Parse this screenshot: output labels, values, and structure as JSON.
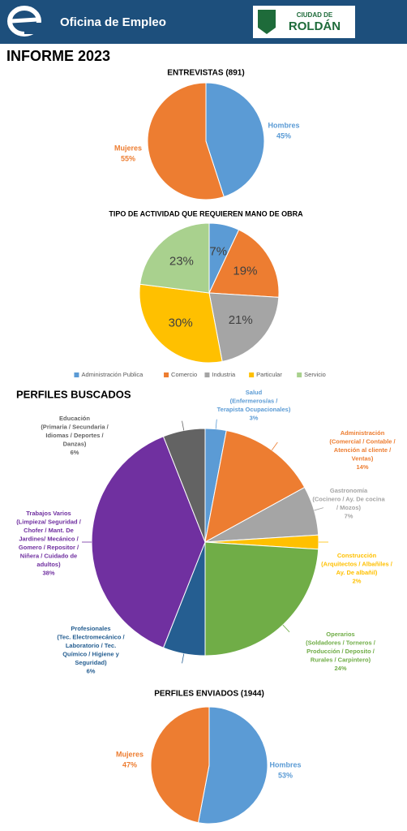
{
  "header": {
    "brand": "Oficina de Empleo",
    "logo_top": "CIUDAD DE",
    "logo_bottom": "ROLDÁN"
  },
  "report_title": "INFORME 2023",
  "chart_data": [
    {
      "type": "pie",
      "title": "ENTREVISTAS (891)",
      "categories": [
        "Hombres",
        "Mujeres"
      ],
      "values": [
        45,
        55
      ],
      "value_labels": [
        "45%",
        "55%"
      ],
      "colors": [
        "#5b9bd5",
        "#ed7d31"
      ]
    },
    {
      "type": "pie",
      "title": "TIPO DE ACTIVIDAD QUE REQUIEREN MANO DE OBRA",
      "categories": [
        "Administración Publica",
        "Comercio",
        "Industria",
        "Particular",
        "Servicio"
      ],
      "values": [
        7,
        19,
        21,
        30,
        23
      ],
      "value_labels": [
        "7%",
        "19%",
        "21%",
        "30%",
        "23%"
      ],
      "colors": [
        "#5b9bd5",
        "#ed7d31",
        "#a5a5a5",
        "#ffc000",
        "#a9d18e"
      ],
      "legend": "bottom"
    },
    {
      "type": "pie",
      "title": "PERFILES BUSCADOS",
      "categories": [
        [
          "Salud",
          "(Enfermeros/as /",
          "Terapista Ocupacionales)"
        ],
        [
          "Administración",
          "(Comercial / Contable /",
          "Atención al cliente /",
          "Ventas)"
        ],
        [
          "Gastronomía",
          "(Cocinero / Ay. De cocina",
          "/ Mozos)"
        ],
        [
          "Construcción",
          "(Arquitectos / Albañiles /",
          "Ay. De albañil)"
        ],
        [
          "Operarios",
          "(Soldadores / Torneros /",
          "Producción / Deposito /",
          "Rurales / Carpintero)"
        ],
        [
          "Profesionales",
          "(Tec. Electromecánico /",
          "Laboratorio / Tec.",
          "Químico / Higiene y",
          "Seguridad)"
        ],
        [
          "Trabajos Varios",
          "(Limpieza/ Seguridad /",
          "Chofer / Mant. De",
          "Jardines/ Mecánico /",
          "Gomero / Repositor /",
          "Niñera / Cuidado de",
          "adultos)"
        ],
        [
          "Educación",
          "(Primaria / Secundaria /",
          "Idiomas / Deportes /",
          "Danzas)"
        ]
      ],
      "values": [
        3,
        14,
        7,
        2,
        24,
        6,
        38,
        6
      ],
      "value_labels": [
        "3%",
        "14%",
        "7%",
        "2%",
        "24%",
        "6%",
        "38%",
        "6%"
      ],
      "colors": [
        "#5b9bd5",
        "#ed7d31",
        "#a5a5a5",
        "#ffc000",
        "#70ad47",
        "#255e91",
        "#7030a0",
        "#636363"
      ]
    },
    {
      "type": "pie",
      "title": "PERFILES ENVIADOS (1944)",
      "categories": [
        "Hombres",
        "Mujeres"
      ],
      "values": [
        53,
        47
      ],
      "value_labels": [
        "53%",
        "47%"
      ],
      "colors": [
        "#5b9bd5",
        "#ed7d31"
      ]
    }
  ]
}
